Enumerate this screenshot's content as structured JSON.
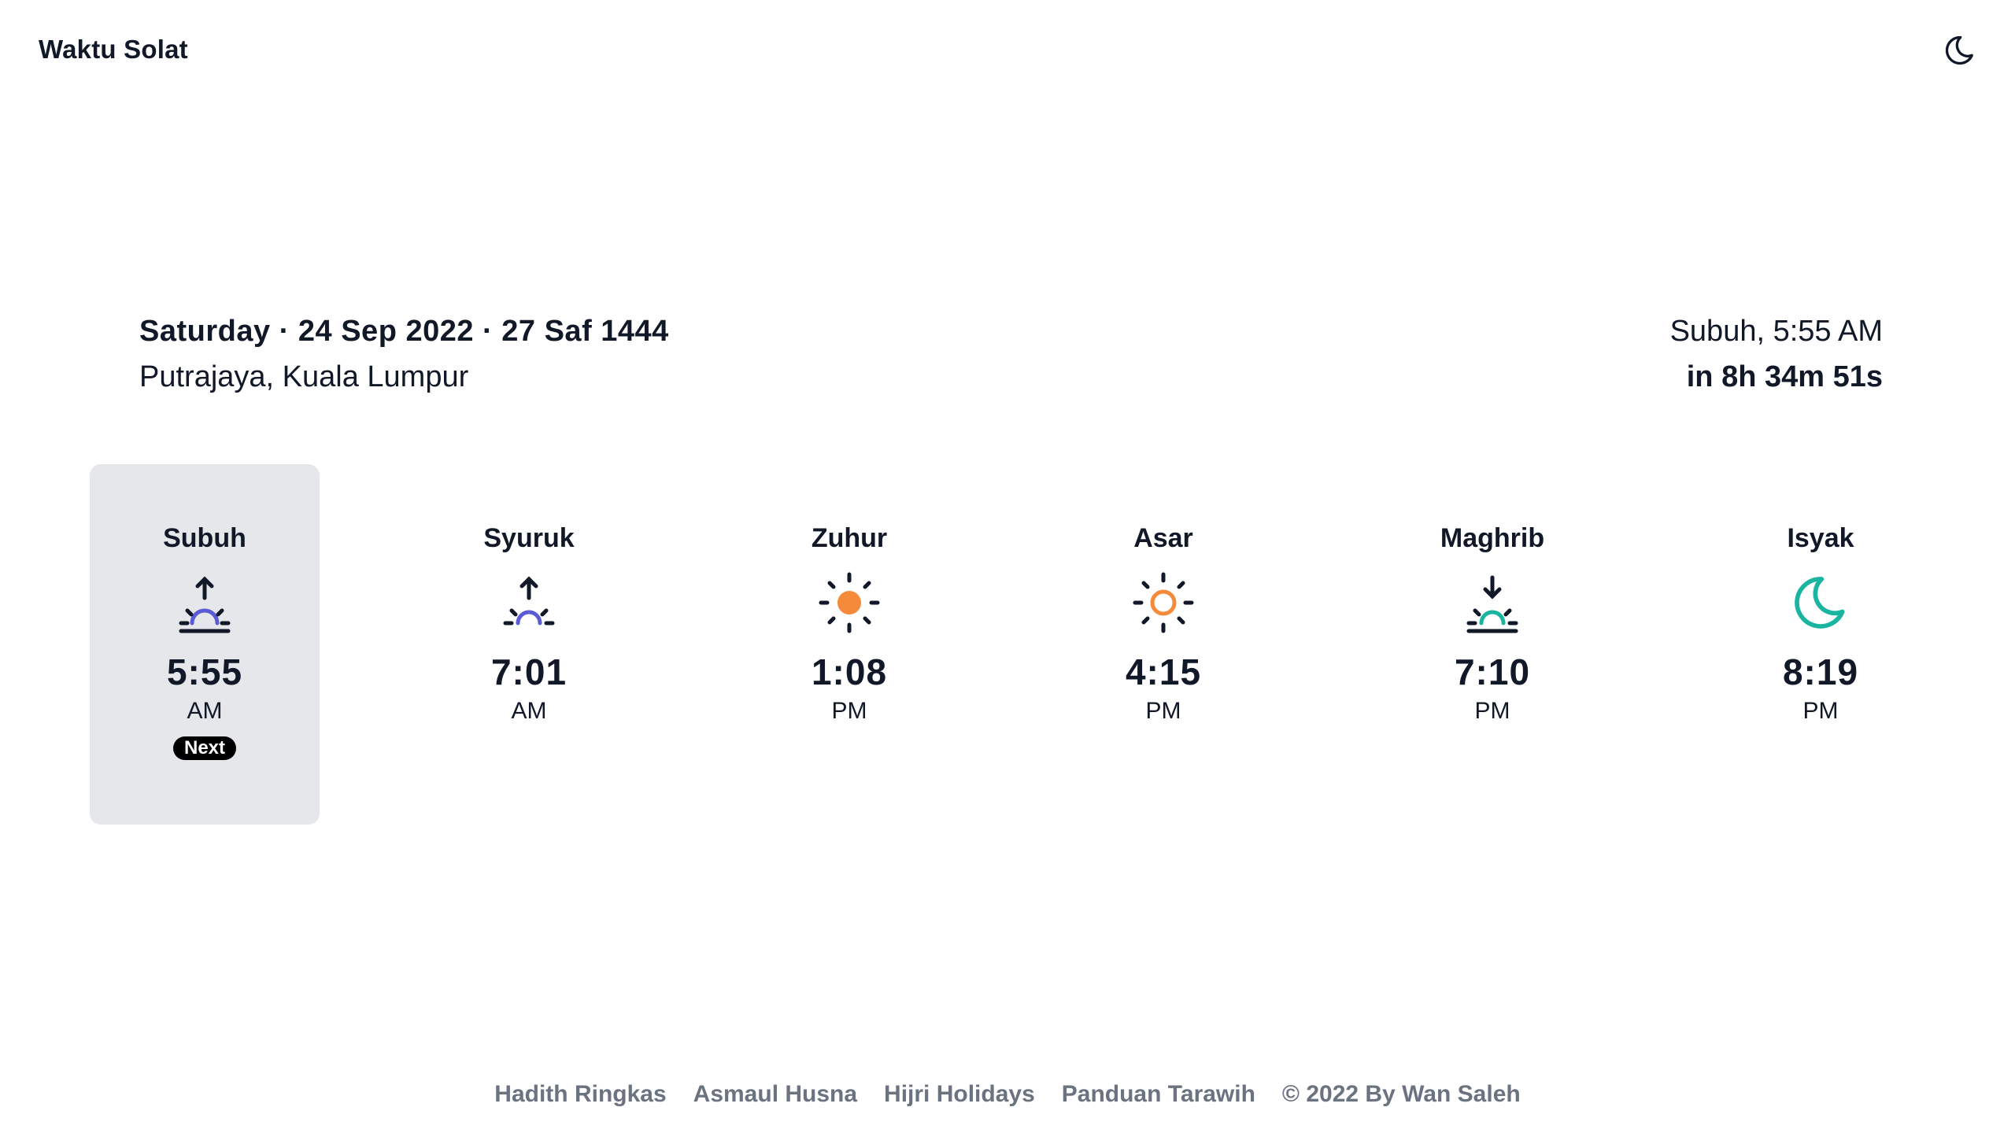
{
  "header": {
    "title": "Waktu Solat",
    "theme_toggle_icon": "moon-icon"
  },
  "info": {
    "date_line": "Saturday · 24 Sep 2022 · 27 Saf 1444",
    "location": "Putrajaya, Kuala Lumpur",
    "next_prayer": "Subuh, 5:55 AM",
    "countdown": "in 8h 34m 51s"
  },
  "prayers": [
    {
      "name": "Subuh",
      "time": "5:55",
      "ampm": "AM",
      "icon": "sunrise-icon",
      "active": true,
      "badge": "Next"
    },
    {
      "name": "Syuruk",
      "time": "7:01",
      "ampm": "AM",
      "icon": "sunrise-small-icon",
      "active": false
    },
    {
      "name": "Zuhur",
      "time": "1:08",
      "ampm": "PM",
      "icon": "sun-filled-icon",
      "active": false
    },
    {
      "name": "Asar",
      "time": "4:15",
      "ampm": "PM",
      "icon": "sun-outline-icon",
      "active": false
    },
    {
      "name": "Maghrib",
      "time": "7:10",
      "ampm": "PM",
      "icon": "sunset-icon",
      "active": false
    },
    {
      "name": "Isyak",
      "time": "8:19",
      "ampm": "PM",
      "icon": "moon-icon",
      "active": false
    }
  ],
  "colors": {
    "dawn": "#5b5bd6",
    "sun": "#f58b3a",
    "teal": "#1ab5a0",
    "dark": "#111827",
    "muted": "#6b7280",
    "active_bg": "#e5e7eb"
  },
  "footer": {
    "links": [
      "Hadith Ringkas",
      "Asmaul Husna",
      "Hijri Holidays",
      "Panduan Tarawih"
    ],
    "copyright": "© 2022 By Wan Saleh"
  }
}
